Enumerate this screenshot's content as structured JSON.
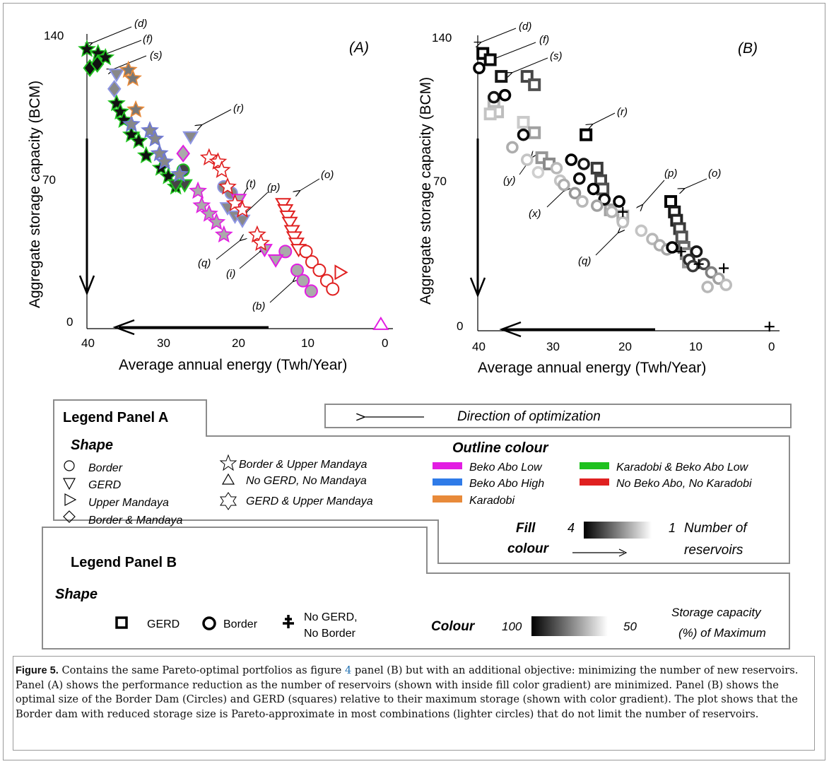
{
  "chart_data": [
    {
      "panel": "(A)",
      "type": "scatter",
      "xlabel": "Average annual energy  (Twh/Year)",
      "ylabel": "Aggregate storage capacity (BCM)",
      "x_ticks": [
        "40",
        "30",
        "20",
        "10",
        "0"
      ],
      "y_ticks": [
        "0",
        "70",
        "140"
      ],
      "x_reversed": true,
      "xlim": [
        40,
        0
      ],
      "ylim": [
        0,
        140
      ],
      "annotations": [
        "(d)",
        "(f)",
        "(s)",
        "(r)",
        "(t)",
        "(p)",
        "(o)",
        "(q)",
        "(i)",
        "(b)"
      ],
      "series": [
        {
          "name": "Karadobi & Beko Abo Low",
          "shape": "star",
          "color": "#1fc11f",
          "points": [
            [
              40,
              134
            ],
            [
              38.5,
              132
            ],
            [
              37.5,
              130
            ],
            [
              36,
              108
            ],
            [
              35.5,
              104
            ],
            [
              35,
              100
            ],
            [
              34,
              93
            ],
            [
              33,
              90
            ],
            [
              32,
              83
            ],
            [
              30,
              77
            ],
            [
              29,
              73
            ],
            [
              28,
              68
            ]
          ]
        },
        {
          "name": "Karadobi & Beko Abo Low",
          "shape": "diamond",
          "color": "#1fc11f",
          "points": [
            [
              39.6,
              125
            ],
            [
              38.6,
              127
            ]
          ]
        },
        {
          "name": "Karadobi & Beko Abo Low",
          "shape": "circle",
          "color": "#1fc11f",
          "points": [
            [
              27,
              76
            ]
          ]
        },
        {
          "name": "Karadobi & Beko Abo Low",
          "shape": "triangle-down",
          "color": "#1fc11f",
          "points": [
            [
              26.8,
              69
            ],
            [
              28,
              69
            ]
          ]
        },
        {
          "name": "Beko Abo High",
          "shape": "star",
          "color": "#6e78d6",
          "points": [
            [
              31.5,
              95
            ],
            [
              30.8,
              91
            ],
            [
              30.2,
              84
            ],
            [
              29.5,
              80
            ],
            [
              27.5,
              74
            ],
            [
              34,
              98
            ]
          ]
        },
        {
          "name": "Beko Abo High",
          "shape": "triangle-down",
          "color": "#8d95e3",
          "points": [
            [
              36,
              122
            ],
            [
              26,
              92
            ],
            [
              20,
              54
            ],
            [
              19,
              52
            ],
            [
              21,
              58
            ]
          ]
        },
        {
          "name": "Beko Abo High",
          "shape": "diamond",
          "color": "#8d95e3",
          "points": [
            [
              36.3,
              115
            ]
          ]
        },
        {
          "name": "Beko Abo High",
          "shape": "circle",
          "color": "#8d95e3",
          "points": [
            [
              21.5,
              68
            ],
            [
              20.5,
              65
            ]
          ]
        },
        {
          "name": "Karadobi",
          "shape": "star",
          "color": "#e88a3a",
          "points": [
            [
              34.4,
              124
            ],
            [
              33.8,
              120
            ],
            [
              33.4,
              105
            ]
          ]
        },
        {
          "name": "Beko Abo Low",
          "shape": "star",
          "color": "#e21de2",
          "points": [
            [
              25,
              66
            ],
            [
              24.5,
              59
            ],
            [
              23.5,
              55
            ],
            [
              22.5,
              51
            ],
            [
              21.5,
              45
            ]
          ]
        },
        {
          "name": "Beko Abo Low",
          "shape": "diamond",
          "color": "#e21de2",
          "points": [
            [
              27,
              84
            ]
          ]
        },
        {
          "name": "Beko Abo Low",
          "shape": "circle",
          "color": "#e21de2",
          "points": [
            [
              13.2,
              37
            ],
            [
              11.6,
              28
            ],
            [
              10.8,
              23
            ],
            [
              9.7,
              18
            ]
          ]
        },
        {
          "name": "Beko Abo Low",
          "shape": "triangle-down",
          "color": "#e21de2",
          "points": [
            [
              16,
              38
            ],
            [
              14.5,
              33
            ],
            [
              19.5,
              62
            ]
          ]
        },
        {
          "name": "Beko Abo Low",
          "shape": "triangle-up",
          "color": "#e21de2",
          "points": [
            [
              0.3,
              2
            ]
          ]
        },
        {
          "name": "No Beko Abo, No Karadobi",
          "shape": "star",
          "color": "#e02020",
          "points": [
            [
              23.5,
              82
            ],
            [
              22.3,
              80
            ],
            [
              21.8,
              76
            ],
            [
              21,
              68
            ],
            [
              20,
              60
            ],
            [
              19,
              57
            ],
            [
              17,
              45
            ],
            [
              16.5,
              41
            ]
          ]
        },
        {
          "name": "No Beko Abo, No Karadobi",
          "shape": "triangle-down",
          "color": "#e02020",
          "points": [
            [
              13.5,
              60
            ],
            [
              13.2,
              57
            ],
            [
              12.9,
              54
            ],
            [
              12.6,
              51
            ],
            [
              12.3,
              47
            ],
            [
              12,
              44
            ],
            [
              11.7,
              41
            ],
            [
              11.4,
              38
            ]
          ]
        },
        {
          "name": "No Beko Abo, No Karadobi",
          "shape": "circle",
          "color": "#e02020",
          "points": [
            [
              10.4,
              37
            ],
            [
              9.6,
              32
            ],
            [
              8.6,
              28
            ],
            [
              7.6,
              23
            ],
            [
              6.8,
              19
            ]
          ]
        },
        {
          "name": "No Beko Abo, No Karadobi",
          "shape": "triangle-right",
          "color": "#e02020",
          "points": [
            [
              5.8,
              27
            ]
          ]
        }
      ]
    },
    {
      "panel": "(B)",
      "type": "scatter",
      "xlabel": "Average annual energy  (Twh/Year)",
      "ylabel": "Aggregate storage capacity (BCM)",
      "x_ticks": [
        "40",
        "30",
        "20",
        "10",
        "0"
      ],
      "y_ticks": [
        "0",
        "70",
        "140"
      ],
      "x_reversed": true,
      "xlim": [
        40,
        0
      ],
      "ylim": [
        0,
        140
      ],
      "annotations": [
        "(d)",
        "(f)",
        "(s)",
        "(r)",
        "(p)",
        "(o)",
        "(y)",
        "(x)",
        "(q)"
      ],
      "series": [
        {
          "name": "GERD",
          "shape": "square",
          "points": [
            [
              39.5,
              133,
              100
            ],
            [
              38.5,
              130,
              95
            ],
            [
              37,
              122,
              90
            ],
            [
              33.5,
              122,
              70
            ],
            [
              32.5,
              118,
              65
            ],
            [
              38,
              110,
              20
            ],
            [
              37.5,
              105,
              18
            ],
            [
              38.5,
              104,
              15
            ],
            [
              34,
              100,
              12
            ],
            [
              32.5,
              95,
              30
            ],
            [
              31.5,
              83,
              35
            ],
            [
              30.5,
              80,
              40
            ],
            [
              25.5,
              94,
              100
            ],
            [
              24,
              78,
              75
            ],
            [
              23.5,
              72,
              70
            ],
            [
              23.2,
              68,
              65
            ],
            [
              22.2,
              58,
              30
            ],
            [
              20.5,
              55,
              25
            ],
            [
              14,
              62,
              100
            ],
            [
              13.5,
              57,
              90
            ],
            [
              13.2,
              53,
              85
            ],
            [
              12.8,
              49,
              75
            ],
            [
              12.5,
              45,
              65
            ],
            [
              12.2,
              40,
              55
            ],
            [
              11.9,
              37,
              45
            ],
            [
              11.6,
              33,
              35
            ]
          ]
        },
        {
          "name": "Border",
          "shape": "circle",
          "points": [
            [
              40,
              126,
              100
            ],
            [
              38,
              112,
              90
            ],
            [
              36.5,
              113,
              100
            ],
            [
              34,
              94,
              95
            ],
            [
              35.5,
              88,
              25
            ],
            [
              33.5,
              82,
              15
            ],
            [
              32,
              76,
              10
            ],
            [
              29.5,
              78,
              20
            ],
            [
              29,
              72,
              15
            ],
            [
              28.5,
              70,
              25
            ],
            [
              27,
              66,
              35
            ],
            [
              26,
              62,
              20
            ],
            [
              27.5,
              82,
              100
            ],
            [
              25.8,
              80,
              90
            ],
            [
              26.4,
              73,
              95
            ],
            [
              24.5,
              68,
              100
            ],
            [
              23,
              63,
              95
            ],
            [
              21,
              62,
              100
            ],
            [
              24,
              60,
              30
            ],
            [
              22,
              57,
              22
            ],
            [
              20.5,
              52,
              18
            ],
            [
              18,
              48,
              15
            ],
            [
              16.5,
              44,
              20
            ],
            [
              15.5,
              41,
              25
            ],
            [
              14.5,
              39,
              28
            ],
            [
              13.8,
              40,
              100
            ],
            [
              10.5,
              38,
              90
            ],
            [
              11.5,
              34,
              80
            ],
            [
              11,
              31,
              75
            ],
            [
              9.5,
              32,
              70
            ],
            [
              8.5,
              28,
              45
            ],
            [
              7.5,
              25,
              30
            ],
            [
              9,
              21,
              20
            ],
            [
              6.5,
              22,
              18
            ]
          ]
        },
        {
          "name": "No GERD, No Border",
          "shape": "plus",
          "points": [
            [
              20.5,
              57,
              100
            ],
            [
              12.6,
              38,
              100
            ],
            [
              10.2,
              32,
              100
            ],
            [
              6.8,
              30,
              100
            ],
            [
              0.6,
              2,
              100
            ]
          ]
        }
      ]
    }
  ],
  "panels": {
    "a": {
      "label": "(A)",
      "y_ticks": {
        "top": "140",
        "mid": "70",
        "bottom": "0"
      },
      "x_ticks": {
        "t40": "40",
        "t30": "30",
        "t20": "20",
        "t10": "10",
        "t0": "0"
      },
      "xlabel": "Average annual energy  (Twh/Year)",
      "ylabel": "Aggregate storage capacity (BCM)",
      "ann": {
        "d": "(d)",
        "f": "(f)",
        "s": "(s)",
        "r": "(r)",
        "t": "(t)",
        "p": "(p)",
        "o": "(o)",
        "q": "(q)",
        "i": "(i)",
        "b": "(b)"
      }
    },
    "b": {
      "label": "(B)",
      "y_ticks": {
        "top": "140",
        "mid": "70",
        "bottom": "0"
      },
      "x_ticks": {
        "t40": "40",
        "t30": "30",
        "t20": "20",
        "t10": "10",
        "t0": "0"
      },
      "xlabel": "Average annual energy  (Twh/Year)",
      "ylabel": "Aggregate storage capacity (BCM)",
      "ann": {
        "d": "(d)",
        "f": "(f)",
        "s": "(s)",
        "r": "(r)",
        "p": "(p)",
        "o": "(o)",
        "y": "(y)",
        "x": "(x)",
        "q": "(q)"
      }
    }
  },
  "direction_label": "Direction of optimization",
  "legend_a": {
    "title": "Legend Panel A",
    "shape_title": "Shape",
    "shapes": {
      "circle": "Border",
      "triangle_down": "GERD",
      "triangle_right": "Upper Mandaya",
      "diamond": "Border & Mandaya",
      "star5": "Border & Upper Mandaya",
      "triangle_up": "No GERD, No Mandaya",
      "star6": "GERD & Upper Mandaya"
    },
    "outline_title": "Outline colour",
    "outline": {
      "beko_low": "Beko Abo Low",
      "beko_high": "Beko Abo High",
      "karadobi": "Karadobi",
      "karadobi_beko": "Karadobi & Beko Abo Low",
      "no_beko": "No Beko Abo, No Karadobi"
    },
    "fill_title_1": "Fill",
    "fill_title_2": "colour",
    "fill_min": "4",
    "fill_max": "1",
    "fill_desc_1": "Number of",
    "fill_desc_2": "reservoirs"
  },
  "legend_b": {
    "title": "Legend Panel B",
    "shape_title": "Shape",
    "gerd": "GERD",
    "border": "Border",
    "nogerd_1": "No GERD,",
    "nogerd_2": "No Border",
    "colour_title": "Colour",
    "colour_min": "100",
    "colour_max": "50",
    "colour_desc_1": "Storage capacity",
    "colour_desc_2": "(%) of Maximum"
  },
  "colors": {
    "beko_low": "#e21de2",
    "beko_high": "#2f7be8",
    "karadobi": "#e88a3a",
    "karadobi_beko": "#1fc11f",
    "no_beko": "#e02020"
  },
  "caption": {
    "lead": "Figure 5.",
    "t1": " Contains the same Pareto-optimal portfolios as figure ",
    "ref": "4",
    "t2": " panel (B) but with an additional objective: minimizing the number of new reservoirs. Panel (A) shows the performance reduction as the number of reservoirs (shown with inside fill color gradient) are minimized. Panel (B) shows the optimal size of the Border Dam (Circles) and GERD (squares) relative to their maximum storage (shown with color gradient). The plot shows that the Border dam with reduced storage size is Pareto-approximate in most combinations (lighter circles) that do not limit the number of reservoirs."
  }
}
